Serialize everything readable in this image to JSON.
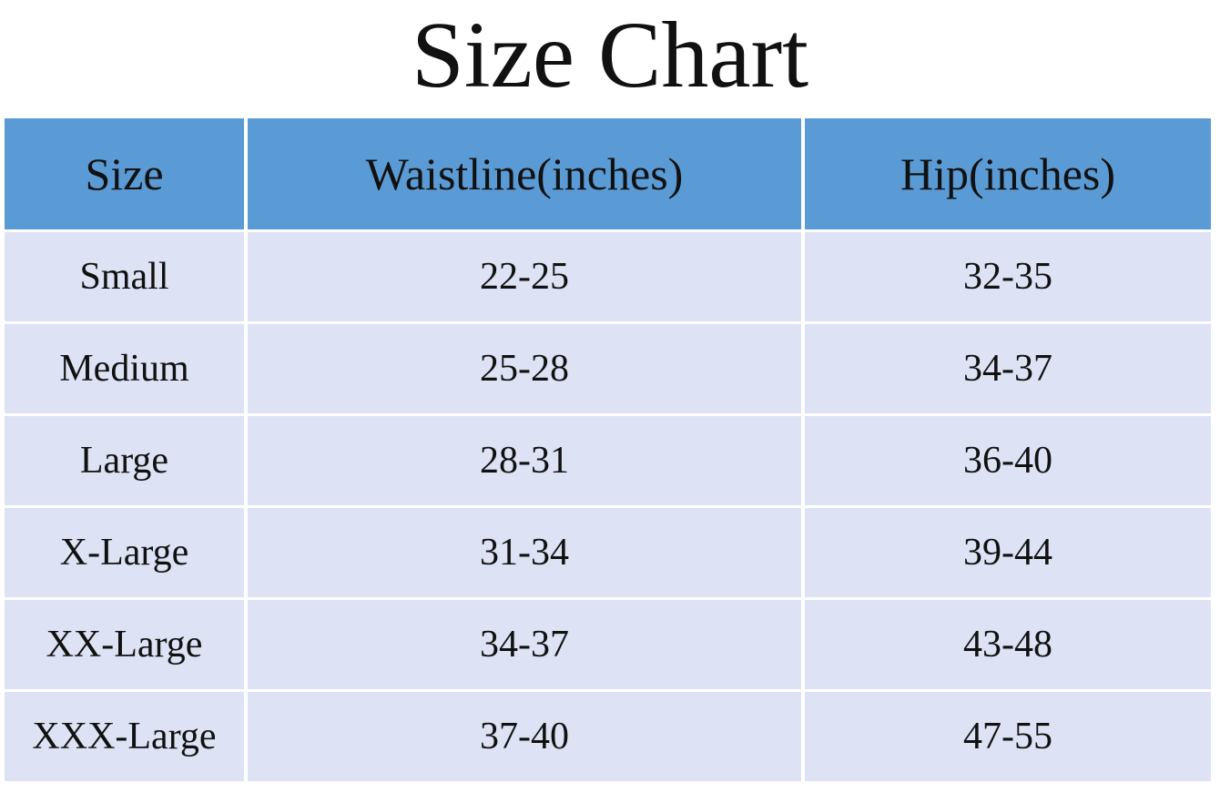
{
  "title": "Size Chart",
  "table": {
    "header": [
      "Size",
      "Waistline(inches)",
      "Hip(inches)"
    ],
    "rows": [
      [
        "Small",
        "22-25",
        "32-35"
      ],
      [
        "Medium",
        "25-28",
        "34-37"
      ],
      [
        "Large",
        "28-31",
        "36-40"
      ],
      [
        "X-Large",
        "31-34",
        "39-44"
      ],
      [
        "XX-Large",
        "34-37",
        "43-48"
      ],
      [
        "XXX-Large",
        "37-40",
        "47-55"
      ]
    ]
  }
}
